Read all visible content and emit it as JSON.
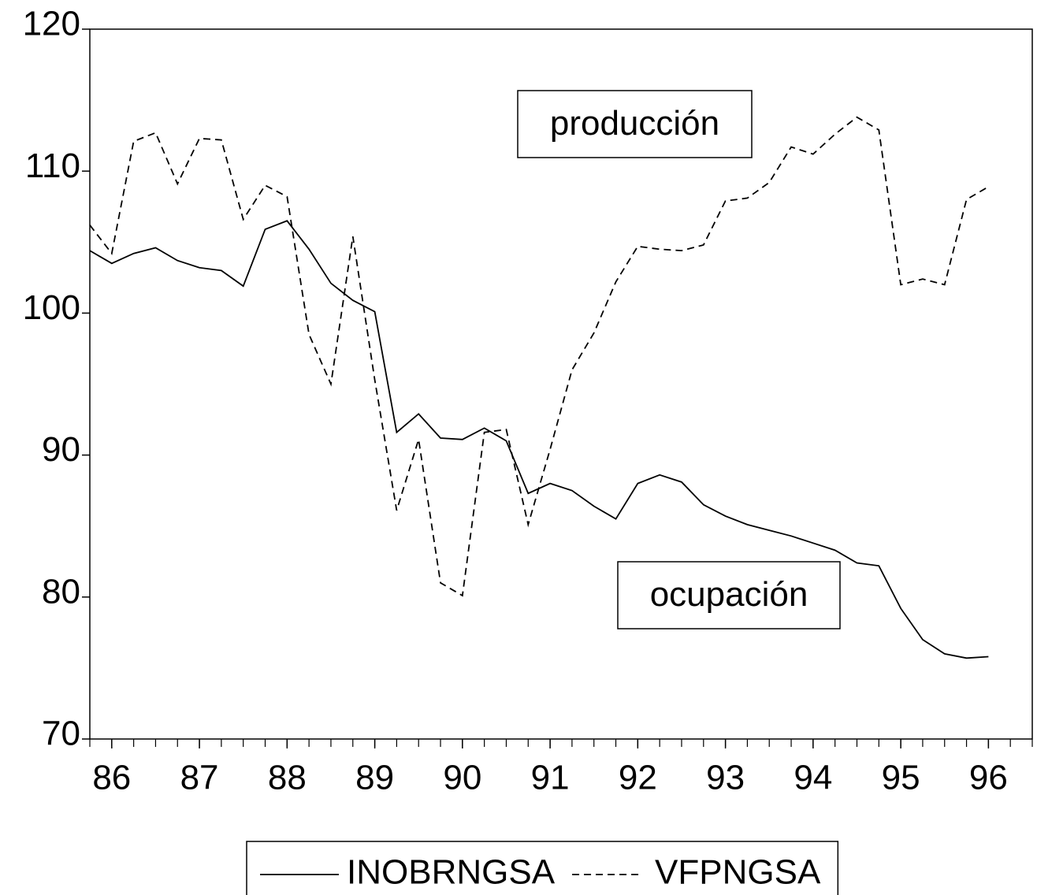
{
  "chart_data": {
    "type": "line",
    "annotations": [
      "producción",
      "ocupación"
    ],
    "x": [
      85.75,
      86,
      86.25,
      86.5,
      86.75,
      87,
      87.25,
      87.5,
      87.75,
      88,
      88.25,
      88.5,
      88.75,
      89,
      89.25,
      89.5,
      89.75,
      90,
      90.25,
      90.5,
      90.75,
      91,
      91.25,
      91.5,
      91.75,
      92,
      92.25,
      92.5,
      92.75,
      93,
      93.25,
      93.5,
      93.75,
      94,
      94.25,
      94.5,
      94.75,
      95,
      95.25,
      95.5,
      95.75,
      96
    ],
    "series": [
      {
        "name": "INOBRNGSA",
        "color": "#000000",
        "dash": "solid",
        "values": [
          104.4,
          103.5,
          104.2,
          104.6,
          103.7,
          103.2,
          103.0,
          101.9,
          105.9,
          106.5,
          104.5,
          102.1,
          100.9,
          100.1,
          91.6,
          92.9,
          91.2,
          91.1,
          91.9,
          91.0,
          87.3,
          88.0,
          87.5,
          86.4,
          85.5,
          88.0,
          88.6,
          88.1,
          86.5,
          85.7,
          85.1,
          84.7,
          84.3,
          83.8,
          83.3,
          82.4,
          82.2,
          79.2,
          77.0,
          76.0,
          75.7,
          75.8
        ]
      },
      {
        "name": "VFPNGSA",
        "color": "#000000",
        "dash": "dashed",
        "values": [
          106.2,
          104.2,
          112.1,
          112.7,
          109.1,
          112.3,
          112.2,
          106.6,
          109.0,
          108.2,
          98.5,
          95.0,
          105.4,
          95.3,
          86.1,
          91.1,
          81.0,
          80.1,
          91.6,
          91.8,
          85.1,
          90.4,
          96.0,
          98.6,
          102.2,
          104.7,
          104.5,
          104.4,
          104.8,
          107.9,
          108.1,
          109.2,
          111.7,
          111.2,
          112.6,
          113.8,
          112.9,
          102.0,
          102.4,
          102.0,
          108.0,
          108.9
        ]
      }
    ],
    "xlim": [
      85.75,
      96.5
    ],
    "xticks": [
      86,
      87,
      88,
      89,
      90,
      91,
      92,
      93,
      94,
      95,
      96
    ],
    "ylim": [
      70,
      120
    ],
    "yticks": [
      70,
      80,
      90,
      100,
      110,
      120
    ],
    "grid": false,
    "legend": "bottom"
  }
}
